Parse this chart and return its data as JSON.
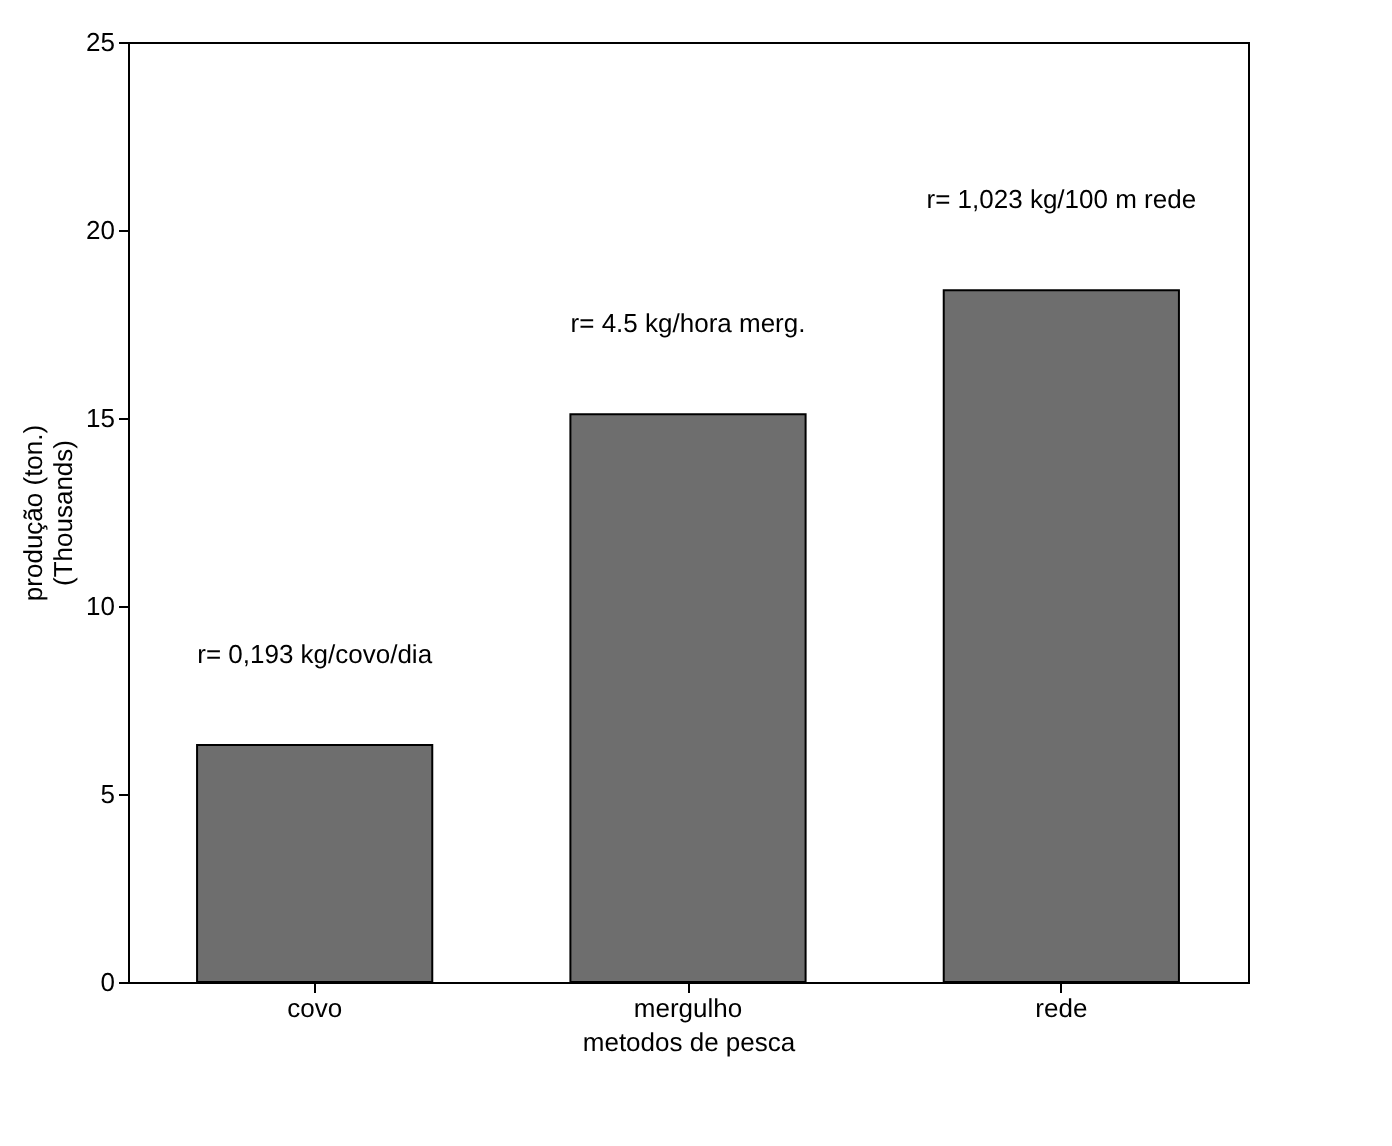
{
  "chart_data": {
    "type": "bar",
    "xlabel": "metodos de pesca",
    "ylabel": "produção (ton.)\n(Thousands)",
    "categories": [
      "covo",
      "mergulho",
      "rede"
    ],
    "values": [
      6.3,
      15.1,
      18.4
    ],
    "color": "#6e6e6e",
    "ylim": [
      0,
      25
    ],
    "yticks": [
      0,
      5,
      10,
      15,
      20,
      25
    ],
    "grid": false,
    "annotations": [
      "r= 0,193 kg/covo/dia",
      "r= 4.5 kg/hora merg.",
      "r= 1,023 kg/100 m rede"
    ]
  }
}
